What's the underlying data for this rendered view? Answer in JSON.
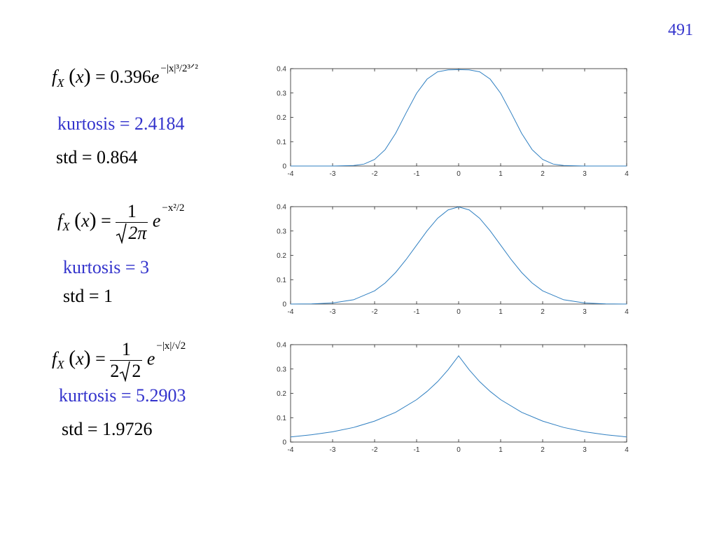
{
  "page_number": "491",
  "panels": [
    {
      "formula": {
        "f": "f",
        "sub": "X",
        "x": "x",
        "coef": "0.396",
        "e": "e",
        "exponent": "−|x|³/2³ᐟ²"
      },
      "kurtosis": "kurtosis = 2.4184",
      "std": "std = 0.864"
    },
    {
      "formula": {
        "f": "f",
        "sub": "X",
        "x": "x",
        "num": "1",
        "den": "2π",
        "e": "e",
        "exponent": "−x²/2"
      },
      "kurtosis": "kurtosis = 3",
      "std": "std = 1"
    },
    {
      "formula": {
        "f": "f",
        "sub": "X",
        "x": "x",
        "num": "1",
        "den_a": "2",
        "den_b": "2",
        "e": "e",
        "exponent": "−|x|/√2"
      },
      "kurtosis": "kurtosis = 5.2903",
      "std": "std = 1.9726"
    }
  ],
  "colors": {
    "line": "#2f7fc1",
    "kurtosis_text": "#3333cc",
    "page_number": "#3333cc"
  },
  "chart_data": [
    {
      "type": "line",
      "title": "",
      "xlabel": "",
      "ylabel": "",
      "xlim": [
        -4,
        4
      ],
      "ylim": [
        0,
        0.4
      ],
      "xticks": [
        "-4",
        "-3",
        "-2",
        "-1",
        "0",
        "1",
        "2",
        "3",
        "4"
      ],
      "yticks": [
        "0",
        "0.1",
        "0.2",
        "0.3",
        "0.4"
      ],
      "grid": false,
      "series": [
        {
          "x": [
            -4,
            -3.5,
            -3,
            -2.5,
            -2.25,
            -2,
            -1.75,
            -1.5,
            -1.25,
            -1,
            -0.75,
            -0.5,
            -0.25,
            0,
            0.25,
            0.5,
            0.75,
            1,
            1.25,
            1.5,
            1.75,
            2,
            2.25,
            2.5,
            3,
            3.5,
            4
          ],
          "y": [
            0.0,
            0.0,
            0.0,
            0.002,
            0.008,
            0.027,
            0.067,
            0.134,
            0.218,
            0.299,
            0.357,
            0.387,
            0.395,
            0.396,
            0.395,
            0.387,
            0.357,
            0.299,
            0.218,
            0.134,
            0.067,
            0.027,
            0.008,
            0.002,
            0.0,
            0.0,
            0.0
          ]
        }
      ]
    },
    {
      "type": "line",
      "title": "",
      "xlabel": "",
      "ylabel": "",
      "xlim": [
        -4,
        4
      ],
      "ylim": [
        0,
        0.4
      ],
      "xticks": [
        "-4",
        "-3",
        "-2",
        "-1",
        "0",
        "1",
        "2",
        "3",
        "4"
      ],
      "yticks": [
        "0",
        "0.1",
        "0.2",
        "0.3",
        "0.4"
      ],
      "grid": false,
      "series": [
        {
          "x": [
            -4,
            -3.5,
            -3,
            -2.5,
            -2,
            -1.75,
            -1.5,
            -1.25,
            -1,
            -0.75,
            -0.5,
            -0.25,
            0,
            0.25,
            0.5,
            0.75,
            1,
            1.25,
            1.5,
            1.75,
            2,
            2.5,
            3,
            3.5,
            4
          ],
          "y": [
            0.0001,
            0.0009,
            0.0044,
            0.0175,
            0.054,
            0.0863,
            0.1295,
            0.1826,
            0.242,
            0.3011,
            0.3521,
            0.3867,
            0.3989,
            0.3867,
            0.3521,
            0.3011,
            0.242,
            0.1826,
            0.1295,
            0.0863,
            0.054,
            0.0175,
            0.0044,
            0.0009,
            0.0001
          ]
        }
      ]
    },
    {
      "type": "line",
      "title": "",
      "xlabel": "",
      "ylabel": "",
      "xlim": [
        -4,
        4
      ],
      "ylim": [
        0,
        0.4
      ],
      "xticks": [
        "-4",
        "-3",
        "-2",
        "-1",
        "0",
        "1",
        "2",
        "3",
        "4"
      ],
      "yticks": [
        "0",
        "0.1",
        "0.2",
        "0.3",
        "0.4"
      ],
      "grid": false,
      "series": [
        {
          "x": [
            -4,
            -3.5,
            -3,
            -2.5,
            -2,
            -1.5,
            -1,
            -0.75,
            -0.5,
            -0.25,
            0,
            0.25,
            0.5,
            0.75,
            1,
            1.5,
            2,
            2.5,
            3,
            3.5,
            4
          ],
          "y": [
            0.021,
            0.03,
            0.042,
            0.06,
            0.086,
            0.122,
            0.174,
            0.208,
            0.248,
            0.297,
            0.354,
            0.297,
            0.248,
            0.208,
            0.174,
            0.122,
            0.086,
            0.06,
            0.042,
            0.03,
            0.021
          ]
        }
      ]
    }
  ]
}
